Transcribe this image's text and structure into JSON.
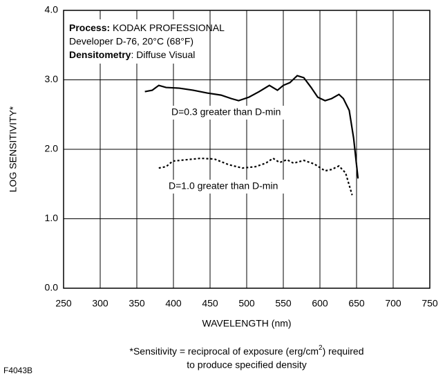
{
  "chart_data": {
    "type": "line",
    "x_label": "WAVELENGTH (nm)",
    "y_label": "LOG SENSITIVITY*",
    "xlim": [
      250,
      750
    ],
    "xticks": [
      250,
      300,
      350,
      400,
      450,
      500,
      550,
      600,
      650,
      700,
      750
    ],
    "ylim": [
      0,
      4
    ],
    "yticks": [
      {
        "value": 0,
        "label": "0.0"
      },
      {
        "value": 1,
        "label": "1.0"
      },
      {
        "value": 2,
        "label": "2.0"
      },
      {
        "value": 3,
        "label": "3.0"
      },
      {
        "value": 4,
        "label": "4.0"
      }
    ],
    "grid": true,
    "series": [
      {
        "name": "D=0.3 greater than D-min",
        "color": "#000000",
        "dash": "solid",
        "x": [
          361,
          371,
          380,
          390,
          408,
          427,
          446,
          465,
          479,
          489,
          503,
          517,
          531,
          542,
          550,
          559,
          569,
          578,
          588,
          597,
          607,
          616,
          626,
          632,
          640,
          646,
          652
        ],
        "values": [
          2.83,
          2.85,
          2.92,
          2.89,
          2.88,
          2.85,
          2.81,
          2.78,
          2.73,
          2.7,
          2.75,
          2.83,
          2.92,
          2.85,
          2.92,
          2.96,
          3.06,
          3.03,
          2.89,
          2.75,
          2.7,
          2.73,
          2.79,
          2.73,
          2.56,
          2.16,
          1.58
        ]
      },
      {
        "name": "D=1.0 greater than D-min",
        "color": "#000000",
        "dash": "dotted",
        "x": [
          380,
          390,
          399,
          418,
          437,
          456,
          475,
          494,
          512,
          526,
          536,
          545,
          555,
          564,
          578,
          592,
          607,
          616,
          626,
          635,
          644
        ],
        "values": [
          1.73,
          1.75,
          1.83,
          1.85,
          1.87,
          1.86,
          1.78,
          1.73,
          1.75,
          1.8,
          1.87,
          1.81,
          1.85,
          1.8,
          1.84,
          1.79,
          1.69,
          1.71,
          1.76,
          1.66,
          1.34
        ]
      }
    ],
    "annotation": {
      "line1": {
        "bold": "Process:",
        "text": " KODAK PROFESSIONAL"
      },
      "line2": "Developer D-76, 20°C (68°F)",
      "line3": {
        "bold": "Densitometry",
        "text": ": Diffuse Visual"
      }
    },
    "footnote": {
      "line1_start": "*Sensitivity = reciprocal of exposure (erg/cm",
      "line1_sup": "2",
      "line1_end": ") required",
      "line2": "to produce specified density"
    },
    "code": "F4043B"
  }
}
